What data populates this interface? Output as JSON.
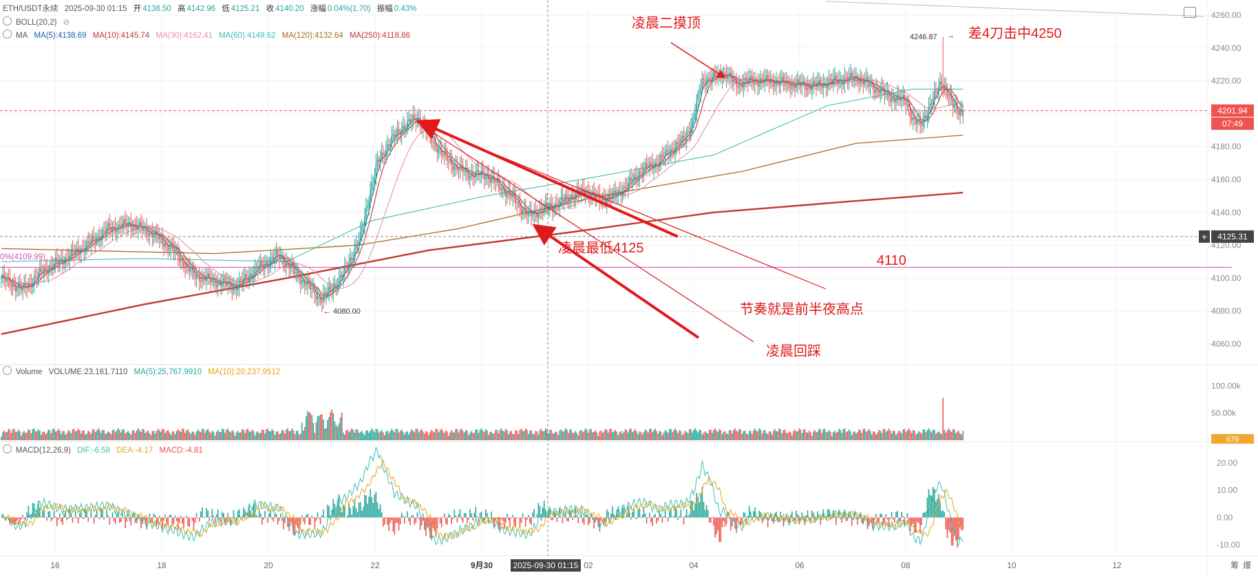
{
  "symbol_line": {
    "symbol": "ETH/USDT永续",
    "datetime": "2025-09-30 01:15",
    "open_label": "开",
    "open": "4138.50",
    "high_label": "高",
    "high": "4142.96",
    "low_label": "低",
    "low": "4125.21",
    "close_label": "收",
    "close": "4140.20",
    "change_label": "涨幅",
    "change": "0.04%(1.70)",
    "amp_label": "振幅",
    "amp": "0.43%"
  },
  "boll_label": "BOLL(20,2)",
  "ma_legend": {
    "label": "MA",
    "items": [
      {
        "text": "MA(5):4138.69",
        "color": "#1f5fa8"
      },
      {
        "text": "MA(10):4145.74",
        "color": "#c0392b"
      },
      {
        "text": "MA(30):4162.41",
        "color": "#e48fb7"
      },
      {
        "text": "MA(60):4149.62",
        "color": "#3cbfb0"
      },
      {
        "text": "MA(120):4132.64",
        "color": "#a86a1e"
      },
      {
        "text": "MA(250):4118.86",
        "color": "#c0392b"
      }
    ]
  },
  "volume_legend": {
    "label": "Volume",
    "volume": "VOLUME:23,161.7110",
    "ma5": "MA(5):25,767.9910",
    "ma10": "MA(10):20,237.9512"
  },
  "macd_legend": {
    "label": "MACD(12,26,9)",
    "dif": "DIF:-6.58",
    "dea": "DEA:-4.17",
    "macd": "MACD:-4.81"
  },
  "annotations": {
    "top_peak": "凌晨二摸顶",
    "spike": "差4刀击中4250",
    "low": "凌晨最低4125",
    "level": "4110",
    "rhythm": "节奏就是前半夜高点",
    "pullback": "凌晨回踩",
    "spike_value": "4246.87",
    "low_value": "4080.00",
    "left_level": "0%(4109.99)"
  },
  "price_tags": {
    "current": "4201.94",
    "countdown": "07:49",
    "crosshair": "4125.31",
    "crosshair_time": "2025-09-30 01:15",
    "volume_now": "679"
  },
  "corner_labels": [
    "筹",
    "爆"
  ],
  "colors": {
    "up": "#26a69a",
    "down": "#ef5350",
    "annotation": "#e0191b",
    "ma5": "#1f5fa8",
    "ma10": "#c0392b",
    "ma30": "#e48fb7",
    "ma60": "#3cbfb0",
    "ma120": "#a86a1e",
    "ma250": "#c0392b",
    "level_line": "#d04fc0"
  },
  "chart_data": [
    {
      "type": "candlestick",
      "title": "",
      "x_ticks": [
        "16",
        "18",
        "20",
        "22",
        "9月30",
        "02",
        "04",
        "06",
        "08",
        "10",
        "12"
      ],
      "y_ticks": [
        4060,
        4080,
        4100,
        4120,
        4140,
        4160,
        4180,
        4200,
        4220,
        4240,
        4260
      ],
      "ylim": [
        4040,
        4265
      ],
      "close_path": [
        [
          0,
          4100
        ],
        [
          15,
          4093
        ],
        [
          30,
          4105
        ],
        [
          45,
          4112
        ],
        [
          60,
          4120
        ],
        [
          75,
          4130
        ],
        [
          90,
          4133
        ],
        [
          105,
          4128
        ],
        [
          120,
          4118
        ],
        [
          135,
          4102
        ],
        [
          150,
          4098
        ],
        [
          165,
          4095
        ],
        [
          180,
          4106
        ],
        [
          195,
          4114
        ],
        [
          210,
          4100
        ],
        [
          225,
          4087
        ],
        [
          240,
          4102
        ],
        [
          252,
          4125
        ],
        [
          258,
          4150
        ],
        [
          264,
          4170
        ],
        [
          272,
          4182
        ],
        [
          282,
          4192
        ],
        [
          292,
          4198
        ],
        [
          300,
          4187
        ],
        [
          310,
          4175
        ],
        [
          320,
          4167
        ],
        [
          330,
          4163
        ],
        [
          340,
          4163
        ],
        [
          350,
          4156
        ],
        [
          360,
          4148
        ],
        [
          370,
          4138
        ],
        [
          380,
          4142
        ],
        [
          390,
          4145
        ],
        [
          400,
          4150
        ],
        [
          410,
          4153
        ],
        [
          420,
          4148
        ],
        [
          430,
          4150
        ],
        [
          440,
          4157
        ],
        [
          450,
          4166
        ],
        [
          460,
          4170
        ],
        [
          470,
          4178
        ],
        [
          480,
          4185
        ],
        [
          486,
          4198
        ],
        [
          492,
          4220
        ],
        [
          500,
          4222
        ],
        [
          508,
          4225
        ],
        [
          515,
          4218
        ],
        [
          525,
          4220
        ],
        [
          540,
          4220
        ],
        [
          555,
          4218
        ],
        [
          570,
          4217
        ],
        [
          585,
          4220
        ],
        [
          600,
          4222
        ],
        [
          615,
          4215
        ],
        [
          625,
          4210
        ],
        [
          635,
          4208
        ],
        [
          640,
          4196
        ],
        [
          645,
          4193
        ],
        [
          652,
          4205
        ],
        [
          660,
          4220
        ],
        [
          668,
          4205
        ],
        [
          675,
          4201
        ]
      ],
      "spike_high": 4246.87,
      "low_mark": 4080.0,
      "levels": [
        4109.99,
        4125.31,
        4201.94
      ],
      "ma5": "follows close",
      "ma60": [
        [
          0,
          4110
        ],
        [
          100,
          4112
        ],
        [
          200,
          4110
        ],
        [
          260,
          4135
        ],
        [
          340,
          4150
        ],
        [
          420,
          4162
        ],
        [
          500,
          4175
        ],
        [
          580,
          4205
        ],
        [
          640,
          4215
        ],
        [
          675,
          4215
        ]
      ],
      "ma120": [
        [
          0,
          4118
        ],
        [
          150,
          4115
        ],
        [
          250,
          4120
        ],
        [
          320,
          4130
        ],
        [
          420,
          4150
        ],
        [
          520,
          4165
        ],
        [
          600,
          4182
        ],
        [
          675,
          4187
        ]
      ],
      "ma250": [
        [
          0,
          4066
        ],
        [
          100,
          4084
        ],
        [
          200,
          4100
        ],
        [
          300,
          4117
        ],
        [
          400,
          4128
        ],
        [
          500,
          4140
        ],
        [
          600,
          4147
        ],
        [
          675,
          4152
        ]
      ]
    },
    {
      "type": "bar",
      "title": "Volume",
      "y_ticks": [
        "100.00k",
        "50.00k"
      ],
      "ylim": [
        0,
        120000
      ]
    },
    {
      "type": "bar",
      "title": "MACD(12,26,9)",
      "y_ticks": [
        20,
        10,
        0,
        -10
      ],
      "ylim": [
        -12,
        22
      ]
    }
  ]
}
